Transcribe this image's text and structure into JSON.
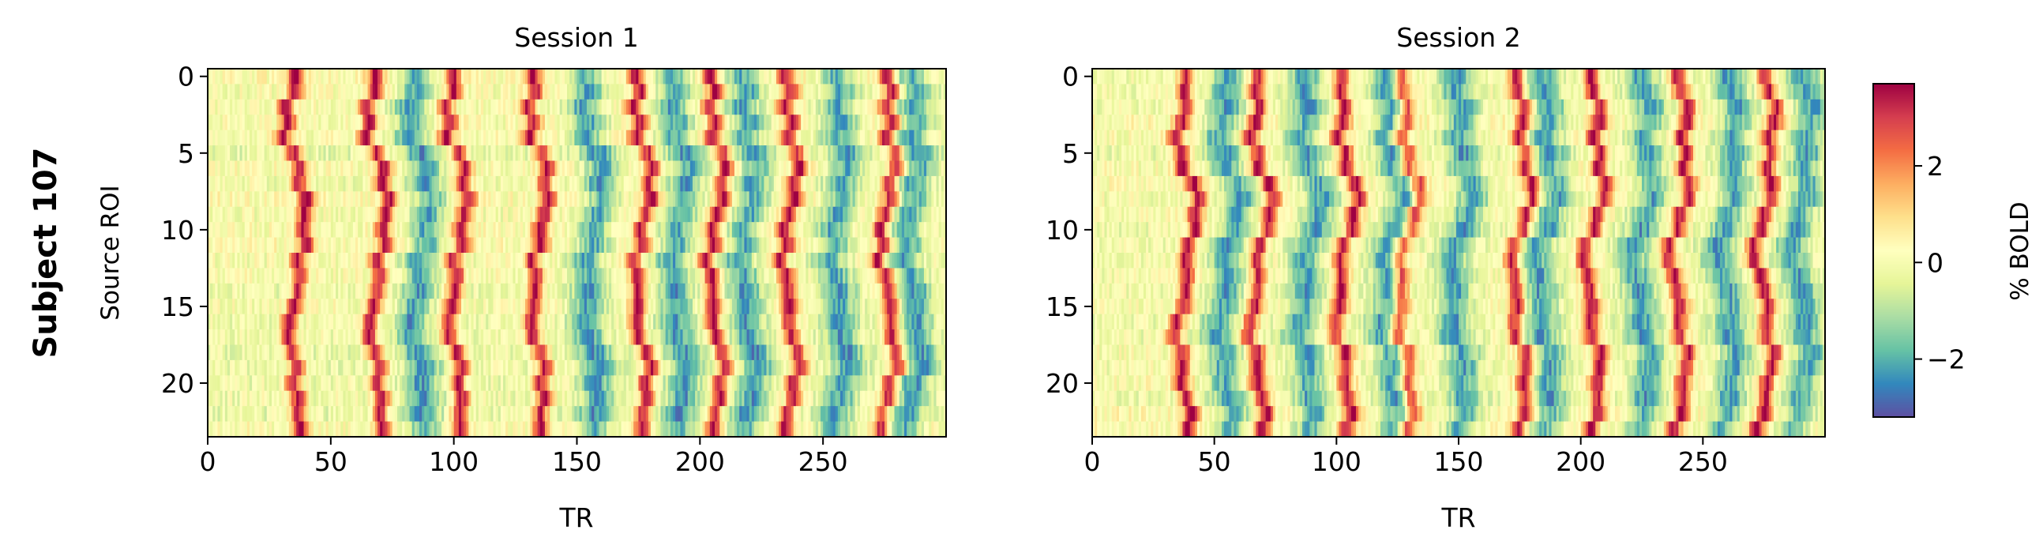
{
  "figure": {
    "row_label": "Subject 107"
  },
  "colorbar": {
    "label": "% BOLD",
    "colormap": "Spectral_r",
    "vmin": -3.2,
    "vmax": 3.7,
    "ticks": [
      -2,
      0,
      2
    ],
    "tick_labels": [
      "−2",
      "0",
      "2"
    ],
    "colors": [
      "#5e4fa2",
      "#3288bd",
      "#66c2a5",
      "#abdda4",
      "#e6f598",
      "#ffffbf",
      "#fee08b",
      "#fdae61",
      "#f46d43",
      "#d53e4f",
      "#9e0142"
    ]
  },
  "chart_data": [
    {
      "type": "heatmap",
      "title": "Session 1",
      "xlabel": "TR",
      "ylabel": "Source ROI",
      "xlim": [
        0,
        299
      ],
      "ylim": [
        23.5,
        -0.5
      ],
      "n_rows": 24,
      "n_cols": 300,
      "xticks": [
        0,
        50,
        100,
        150,
        200,
        250
      ],
      "yticks": [
        0,
        5,
        10,
        15,
        20
      ],
      "positive_peak_trs": [
        35,
        68,
        100,
        133,
        175,
        205,
        235,
        275
      ],
      "negative_trough_trs": [
        85,
        155,
        190,
        218,
        255,
        285
      ]
    },
    {
      "type": "heatmap",
      "title": "Session 2",
      "xlabel": "TR",
      "ylabel": "",
      "xlim": [
        0,
        299
      ],
      "ylim": [
        23.5,
        -0.5
      ],
      "n_rows": 24,
      "n_cols": 300,
      "xticks": [
        0,
        50,
        100,
        150,
        200,
        250
      ],
      "yticks": [
        0,
        5,
        10,
        15,
        20
      ],
      "positive_peak_trs": [
        38,
        68,
        103,
        128,
        175,
        205,
        240,
        275
      ],
      "negative_trough_trs": [
        55,
        88,
        122,
        150,
        185,
        225,
        260,
        290
      ]
    }
  ]
}
